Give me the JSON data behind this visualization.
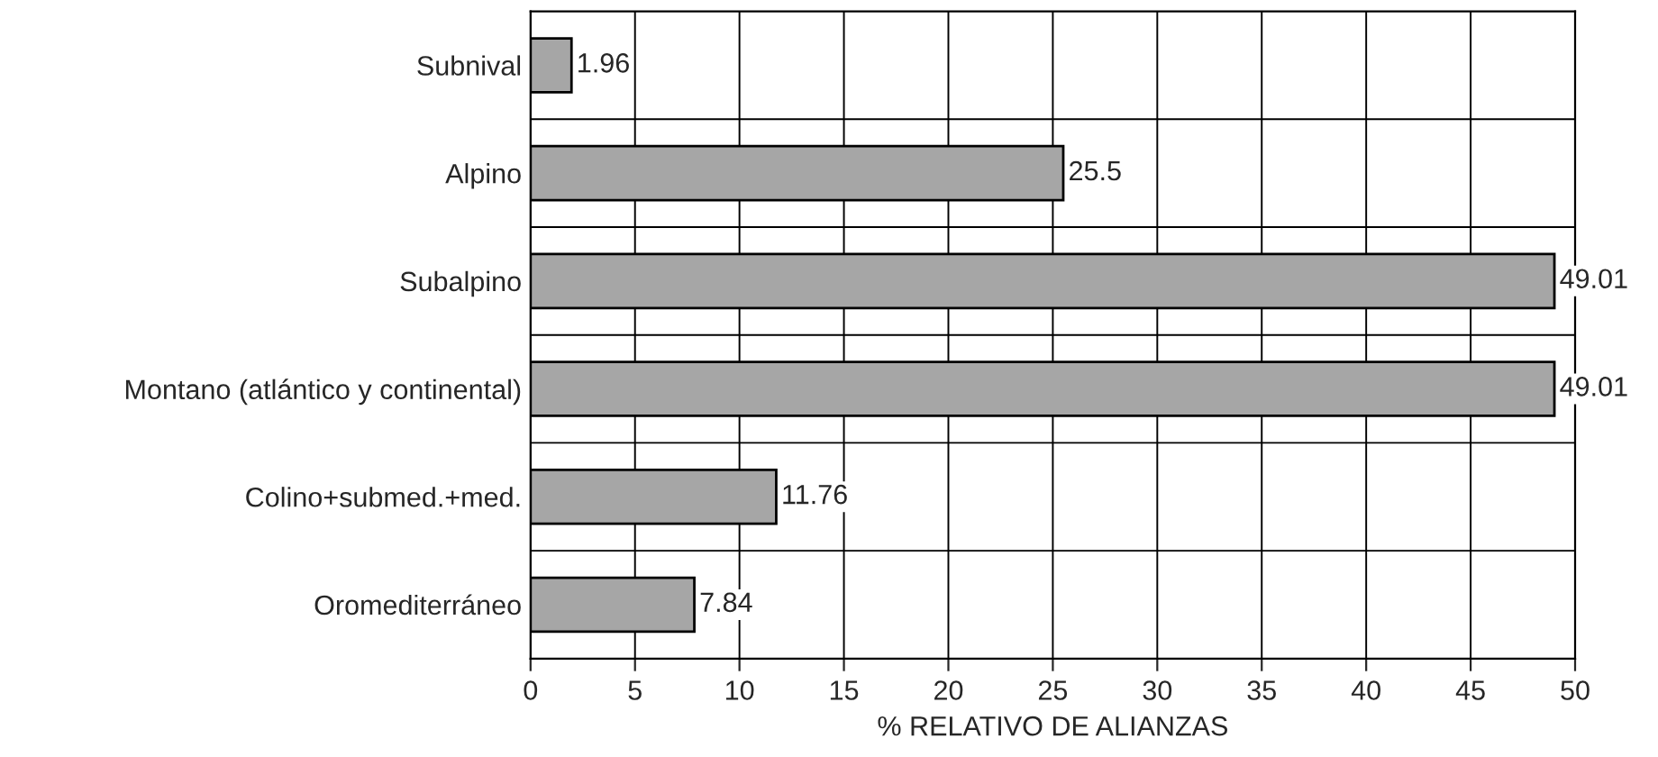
{
  "chart_data": {
    "type": "bar",
    "orientation": "horizontal",
    "xlabel": "% RELATIVO DE ALIANZAS",
    "categories": [
      "Subnival",
      "Alpino",
      "Subalpino",
      "Montano (atlántico y continental)",
      "Colino+submed.+med.",
      "Oromediterráneo"
    ],
    "values": [
      1.96,
      25.5,
      49.01,
      49.01,
      11.76,
      7.84
    ],
    "color": "#a6a6a6",
    "xlim": [
      0,
      50
    ],
    "xticks": [
      0,
      5,
      10,
      15,
      20,
      25,
      30,
      35,
      40,
      45,
      50
    ],
    "grid": true,
    "data_labels": true
  }
}
